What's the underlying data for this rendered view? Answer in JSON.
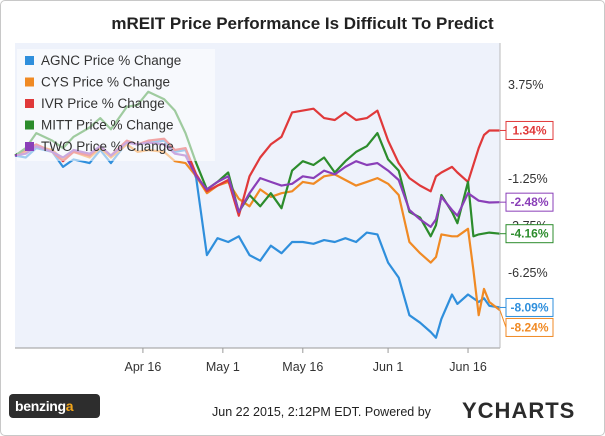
{
  "title": "mREIT Price Performance Is Difficult To Predict",
  "footer": {
    "timestamp": "Jun 22 2015, 2:12PM EDT.",
    "powered_by": "Powered by",
    "ycharts_logo": "YCHARTS",
    "benzinga_logo_main": "benzing",
    "benzinga_logo_accent": "a"
  },
  "chart_data": {
    "type": "line",
    "title": "mREIT Price Performance Is Difficult To Predict",
    "xlabel": "",
    "ylabel": "",
    "x_range": [
      "2015-03-23",
      "2015-06-22"
    ],
    "x_ticks": [
      {
        "date": "2015-04-16",
        "label": "Apr 16"
      },
      {
        "date": "2015-05-01",
        "label": "May 1"
      },
      {
        "date": "2015-05-16",
        "label": "May 16"
      },
      {
        "date": "2015-06-01",
        "label": "Jun 1"
      },
      {
        "date": "2015-06-16",
        "label": "Jun 16"
      }
    ],
    "ylim": [
      -10.25,
      6.0
    ],
    "y_ticks": [
      {
        "value": 3.75,
        "label": "3.75%"
      },
      {
        "value": -1.25,
        "label": "-1.25%"
      },
      {
        "value": -3.75,
        "label": "-3.75%"
      },
      {
        "value": -6.25,
        "label": "-6.25%"
      }
    ],
    "grid": false,
    "legend_position": "top-left",
    "series": [
      {
        "name": "AGNC Price % Change",
        "color": "#2f8fdc",
        "end_label": "-8.09%",
        "points": [
          [
            "2015-03-23",
            0.0
          ],
          [
            "2015-03-25",
            -0.1
          ],
          [
            "2015-03-27",
            0.4
          ],
          [
            "2015-03-30",
            0.2
          ],
          [
            "2015-04-01",
            -0.6
          ],
          [
            "2015-04-03",
            -0.2
          ],
          [
            "2015-04-06",
            -0.4
          ],
          [
            "2015-04-08",
            0.3
          ],
          [
            "2015-04-10",
            -0.4
          ],
          [
            "2015-04-13",
            0.7
          ],
          [
            "2015-04-15",
            0.6
          ],
          [
            "2015-04-17",
            0.7
          ],
          [
            "2015-04-20",
            0.8
          ],
          [
            "2015-04-22",
            0.2
          ],
          [
            "2015-04-24",
            0.3
          ],
          [
            "2015-04-26",
            -1.2
          ],
          [
            "2015-04-28",
            -5.3
          ],
          [
            "2015-04-30",
            -4.4
          ],
          [
            "2015-05-02",
            -4.6
          ],
          [
            "2015-05-04",
            -4.3
          ],
          [
            "2015-05-06",
            -5.3
          ],
          [
            "2015-05-08",
            -5.6
          ],
          [
            "2015-05-10",
            -4.8
          ],
          [
            "2015-05-12",
            -5.2
          ],
          [
            "2015-05-14",
            -4.6
          ],
          [
            "2015-05-16",
            -4.6
          ],
          [
            "2015-05-18",
            -4.7
          ],
          [
            "2015-05-20",
            -4.5
          ],
          [
            "2015-05-22",
            -4.6
          ],
          [
            "2015-05-24",
            -4.4
          ],
          [
            "2015-05-26",
            -4.6
          ],
          [
            "2015-05-28",
            -4.1
          ],
          [
            "2015-05-30",
            -4.2
          ],
          [
            "2015-06-01",
            -5.7
          ],
          [
            "2015-06-03",
            -6.5
          ],
          [
            "2015-06-05",
            -8.5
          ],
          [
            "2015-06-07",
            -8.9
          ],
          [
            "2015-06-09",
            -9.4
          ],
          [
            "2015-06-10",
            -9.7
          ],
          [
            "2015-06-11",
            -8.7
          ],
          [
            "2015-06-13",
            -7.4
          ],
          [
            "2015-06-14",
            -7.9
          ],
          [
            "2015-06-16",
            -7.4
          ],
          [
            "2015-06-18",
            -7.8
          ],
          [
            "2015-06-19",
            -7.6
          ],
          [
            "2015-06-20",
            -8.0
          ],
          [
            "2015-06-22",
            -8.09
          ]
        ]
      },
      {
        "name": "CYS Price % Change",
        "color": "#f08a24",
        "end_label": "-8.24%",
        "points": [
          [
            "2015-03-23",
            0.0
          ],
          [
            "2015-03-25",
            0.2
          ],
          [
            "2015-03-27",
            0.5
          ],
          [
            "2015-03-30",
            0.3
          ],
          [
            "2015-04-01",
            -0.2
          ],
          [
            "2015-04-03",
            0.2
          ],
          [
            "2015-04-06",
            -0.1
          ],
          [
            "2015-04-08",
            0.4
          ],
          [
            "2015-04-10",
            -0.1
          ],
          [
            "2015-04-13",
            0.6
          ],
          [
            "2015-04-15",
            0.2
          ],
          [
            "2015-04-17",
            0.3
          ],
          [
            "2015-04-20",
            0.2
          ],
          [
            "2015-04-22",
            -0.3
          ],
          [
            "2015-04-24",
            -0.4
          ],
          [
            "2015-04-26",
            -1.1
          ],
          [
            "2015-04-28",
            -2.0
          ],
          [
            "2015-04-30",
            -1.6
          ],
          [
            "2015-05-02",
            -1.4
          ],
          [
            "2015-05-04",
            -2.3
          ],
          [
            "2015-05-06",
            -2.7
          ],
          [
            "2015-05-08",
            -1.8
          ],
          [
            "2015-05-10",
            -2.2
          ],
          [
            "2015-05-12",
            -2.0
          ],
          [
            "2015-05-14",
            -1.9
          ],
          [
            "2015-05-16",
            -1.4
          ],
          [
            "2015-05-18",
            -1.5
          ],
          [
            "2015-05-20",
            -1.1
          ],
          [
            "2015-05-22",
            -1.0
          ],
          [
            "2015-05-24",
            -1.3
          ],
          [
            "2015-05-26",
            -1.6
          ],
          [
            "2015-05-28",
            -1.4
          ],
          [
            "2015-05-30",
            -1.2
          ],
          [
            "2015-06-01",
            -1.5
          ],
          [
            "2015-06-03",
            -2.1
          ],
          [
            "2015-06-05",
            -4.6
          ],
          [
            "2015-06-07",
            -5.2
          ],
          [
            "2015-06-09",
            -5.7
          ],
          [
            "2015-06-10",
            -5.4
          ],
          [
            "2015-06-11",
            -4.2
          ],
          [
            "2015-06-13",
            -4.3
          ],
          [
            "2015-06-14",
            -4.3
          ],
          [
            "2015-06-16",
            -3.9
          ],
          [
            "2015-06-17",
            -6.1
          ],
          [
            "2015-06-18",
            -8.5
          ],
          [
            "2015-06-19",
            -7.1
          ],
          [
            "2015-06-20",
            -7.8
          ],
          [
            "2015-06-22",
            -8.24
          ]
        ]
      },
      {
        "name": "IVR Price % Change",
        "color": "#e0393a",
        "end_label": "1.34%",
        "points": [
          [
            "2015-03-23",
            0.0
          ],
          [
            "2015-03-25",
            0.3
          ],
          [
            "2015-03-27",
            0.6
          ],
          [
            "2015-03-30",
            0.2
          ],
          [
            "2015-04-01",
            -0.3
          ],
          [
            "2015-04-03",
            0.2
          ],
          [
            "2015-04-06",
            0.0
          ],
          [
            "2015-04-08",
            0.5
          ],
          [
            "2015-04-10",
            0.0
          ],
          [
            "2015-04-13",
            0.8
          ],
          [
            "2015-04-15",
            0.6
          ],
          [
            "2015-04-17",
            0.8
          ],
          [
            "2015-04-20",
            0.9
          ],
          [
            "2015-04-22",
            0.3
          ],
          [
            "2015-04-24",
            0.4
          ],
          [
            "2015-04-26",
            -1.0
          ],
          [
            "2015-04-28",
            -1.9
          ],
          [
            "2015-04-30",
            -1.6
          ],
          [
            "2015-05-02",
            -1.3
          ],
          [
            "2015-05-04",
            -3.2
          ],
          [
            "2015-05-06",
            -1.1
          ],
          [
            "2015-05-08",
            -0.1
          ],
          [
            "2015-05-10",
            0.6
          ],
          [
            "2015-05-12",
            1.0
          ],
          [
            "2015-05-14",
            2.3
          ],
          [
            "2015-05-16",
            2.4
          ],
          [
            "2015-05-18",
            2.5
          ],
          [
            "2015-05-20",
            2.0
          ],
          [
            "2015-05-22",
            1.9
          ],
          [
            "2015-05-24",
            2.3
          ],
          [
            "2015-05-26",
            1.9
          ],
          [
            "2015-05-28",
            2.0
          ],
          [
            "2015-05-30",
            2.4
          ],
          [
            "2015-06-01",
            0.8
          ],
          [
            "2015-06-03",
            -0.4
          ],
          [
            "2015-06-05",
            -1.2
          ],
          [
            "2015-06-07",
            -1.6
          ],
          [
            "2015-06-09",
            -1.9
          ],
          [
            "2015-06-10",
            -1.1
          ],
          [
            "2015-06-11",
            -0.9
          ],
          [
            "2015-06-13",
            -0.6
          ],
          [
            "2015-06-14",
            -0.9
          ],
          [
            "2015-06-16",
            -1.4
          ],
          [
            "2015-06-18",
            0.4
          ],
          [
            "2015-06-19",
            1.1
          ],
          [
            "2015-06-20",
            1.34
          ],
          [
            "2015-06-22",
            1.34
          ]
        ]
      },
      {
        "name": "MITT Price % Change",
        "color": "#2c8c2c",
        "end_label": "-4.16%",
        "points": [
          [
            "2015-03-23",
            0.0
          ],
          [
            "2015-03-25",
            0.4
          ],
          [
            "2015-03-27",
            1.2
          ],
          [
            "2015-03-30",
            0.8
          ],
          [
            "2015-04-01",
            0.4
          ],
          [
            "2015-04-03",
            1.0
          ],
          [
            "2015-04-06",
            1.5
          ],
          [
            "2015-04-08",
            2.0
          ],
          [
            "2015-04-10",
            1.4
          ],
          [
            "2015-04-13",
            2.6
          ],
          [
            "2015-04-15",
            2.7
          ],
          [
            "2015-04-17",
            3.4
          ],
          [
            "2015-04-20",
            3.0
          ],
          [
            "2015-04-22",
            2.4
          ],
          [
            "2015-04-24",
            1.2
          ],
          [
            "2015-04-26",
            -0.4
          ],
          [
            "2015-04-28",
            -1.8
          ],
          [
            "2015-04-30",
            -1.4
          ],
          [
            "2015-05-02",
            -0.9
          ],
          [
            "2015-05-04",
            -3.0
          ],
          [
            "2015-05-06",
            -2.1
          ],
          [
            "2015-05-08",
            -2.7
          ],
          [
            "2015-05-10",
            -2.0
          ],
          [
            "2015-05-12",
            -2.8
          ],
          [
            "2015-05-14",
            -0.8
          ],
          [
            "2015-05-16",
            -0.3
          ],
          [
            "2015-05-18",
            -0.5
          ],
          [
            "2015-05-20",
            -0.1
          ],
          [
            "2015-05-22",
            -0.9
          ],
          [
            "2015-05-24",
            -0.3
          ],
          [
            "2015-05-26",
            0.2
          ],
          [
            "2015-05-28",
            0.5
          ],
          [
            "2015-05-30",
            1.2
          ],
          [
            "2015-06-01",
            -0.2
          ],
          [
            "2015-06-03",
            -0.8
          ],
          [
            "2015-06-05",
            -3.0
          ],
          [
            "2015-06-07",
            -3.3
          ],
          [
            "2015-06-09",
            -4.3
          ],
          [
            "2015-06-10",
            -3.7
          ],
          [
            "2015-06-11",
            -2.1
          ],
          [
            "2015-06-13",
            -3.0
          ],
          [
            "2015-06-14",
            -3.6
          ],
          [
            "2015-06-16",
            -1.4
          ],
          [
            "2015-06-17",
            -4.3
          ],
          [
            "2015-06-18",
            -4.2
          ],
          [
            "2015-06-20",
            -4.1
          ],
          [
            "2015-06-22",
            -4.16
          ]
        ]
      },
      {
        "name": "TWO Price % Change",
        "color": "#8a3fb8",
        "end_label": "-2.48%",
        "points": [
          [
            "2015-03-23",
            0.0
          ],
          [
            "2015-03-25",
            0.1
          ],
          [
            "2015-03-27",
            0.5
          ],
          [
            "2015-03-30",
            0.2
          ],
          [
            "2015-04-01",
            -0.1
          ],
          [
            "2015-04-03",
            0.3
          ],
          [
            "2015-04-06",
            0.1
          ],
          [
            "2015-04-08",
            0.5
          ],
          [
            "2015-04-10",
            0.0
          ],
          [
            "2015-04-13",
            0.7
          ],
          [
            "2015-04-15",
            0.6
          ],
          [
            "2015-04-17",
            0.7
          ],
          [
            "2015-04-20",
            0.6
          ],
          [
            "2015-04-22",
            0.1
          ],
          [
            "2015-04-24",
            0.0
          ],
          [
            "2015-04-26",
            -1.1
          ],
          [
            "2015-04-28",
            -1.8
          ],
          [
            "2015-04-30",
            -1.4
          ],
          [
            "2015-05-02",
            -1.1
          ],
          [
            "2015-05-04",
            -3.0
          ],
          [
            "2015-05-06",
            -2.0
          ],
          [
            "2015-05-08",
            -1.2
          ],
          [
            "2015-05-10",
            -1.4
          ],
          [
            "2015-05-12",
            -1.6
          ],
          [
            "2015-05-14",
            -1.5
          ],
          [
            "2015-05-16",
            -1.1
          ],
          [
            "2015-05-18",
            -1.2
          ],
          [
            "2015-05-20",
            -0.8
          ],
          [
            "2015-05-22",
            -1.0
          ],
          [
            "2015-05-24",
            -0.6
          ],
          [
            "2015-05-26",
            -0.3
          ],
          [
            "2015-05-28",
            -0.5
          ],
          [
            "2015-05-30",
            -0.4
          ],
          [
            "2015-06-01",
            -0.8
          ],
          [
            "2015-06-03",
            -1.3
          ],
          [
            "2015-06-05",
            -2.9
          ],
          [
            "2015-06-07",
            -3.4
          ],
          [
            "2015-06-09",
            -3.8
          ],
          [
            "2015-06-10",
            -3.4
          ],
          [
            "2015-06-11",
            -2.2
          ],
          [
            "2015-06-13",
            -2.9
          ],
          [
            "2015-06-14",
            -3.2
          ],
          [
            "2015-06-16",
            -2.0
          ],
          [
            "2015-06-18",
            -2.4
          ],
          [
            "2015-06-20",
            -2.5
          ],
          [
            "2015-06-22",
            -2.48
          ]
        ]
      }
    ]
  }
}
